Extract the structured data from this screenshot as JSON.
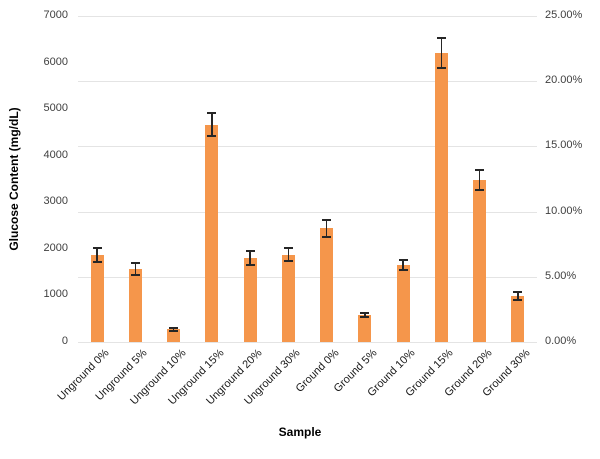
{
  "chart_data": {
    "type": "bar",
    "title": "",
    "xlabel": "Sample",
    "ylabel": "Glucose Content (mg/dL)",
    "categories": [
      "Unground 0%",
      "Unground 5%",
      "Unground 10%",
      "Unground 15%",
      "Unground 20%",
      "Unground 30%",
      "Ground 0%",
      "Ground 5%",
      "Ground 10%",
      "Ground 15%",
      "Ground 20%",
      "Ground 30%"
    ],
    "values": [
      1875,
      1570,
      270,
      4670,
      1810,
      1875,
      2440,
      575,
      1660,
      6200,
      3480,
      985
    ],
    "error_bars": [
      150,
      130,
      35,
      250,
      150,
      145,
      180,
      45,
      110,
      320,
      210,
      90
    ],
    "left_axis": {
      "min": 0,
      "max": 7000,
      "tick_step": 1000,
      "tick_labels": [
        "0",
        "1000",
        "2000",
        "3000",
        "4000",
        "5000",
        "6000",
        "7000"
      ]
    },
    "right_axis": {
      "min": 0,
      "max": 25,
      "tick_labels": [
        "0.00%",
        "5.00%",
        "10.00%",
        "15.00%",
        "20.00%",
        "25.00%"
      ]
    },
    "grid": true,
    "legend": "none",
    "bar_color": "#F5964B",
    "error_color": "#262626",
    "grid_color": "#E4E4E4",
    "tick_color": "#3F3F3F",
    "label_color": "#1A1A1A"
  }
}
